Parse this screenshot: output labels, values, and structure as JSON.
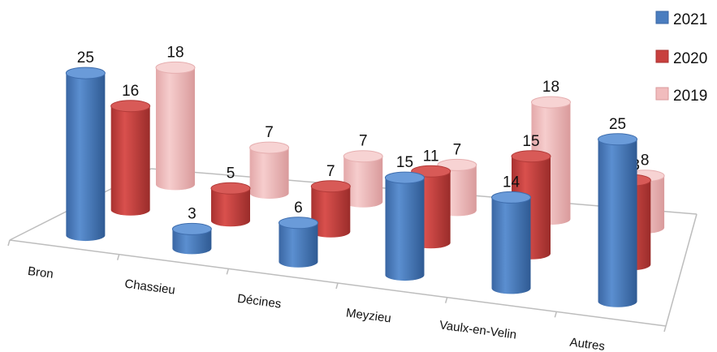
{
  "chart_data": {
    "type": "bar",
    "title": "",
    "xlabel": "",
    "ylabel": "",
    "categories": [
      "Bron",
      "Chassieu",
      "Décines",
      "Meyzieu",
      "Vaulx-en-Velin",
      "Autres"
    ],
    "series": [
      {
        "name": "2021",
        "values": [
          25,
          3,
          6,
          15,
          14,
          25
        ]
      },
      {
        "name": "2020",
        "values": [
          16,
          5,
          7,
          11,
          15,
          13
        ]
      },
      {
        "name": "2019",
        "values": [
          18,
          7,
          7,
          7,
          18,
          8
        ]
      }
    ],
    "legend_position": "top-right",
    "grid": false,
    "style": "3d-cylinder"
  },
  "colors": {
    "2021": "#4a7dbf",
    "2020": "#c8403e",
    "2019": "#f1bcbd"
  }
}
